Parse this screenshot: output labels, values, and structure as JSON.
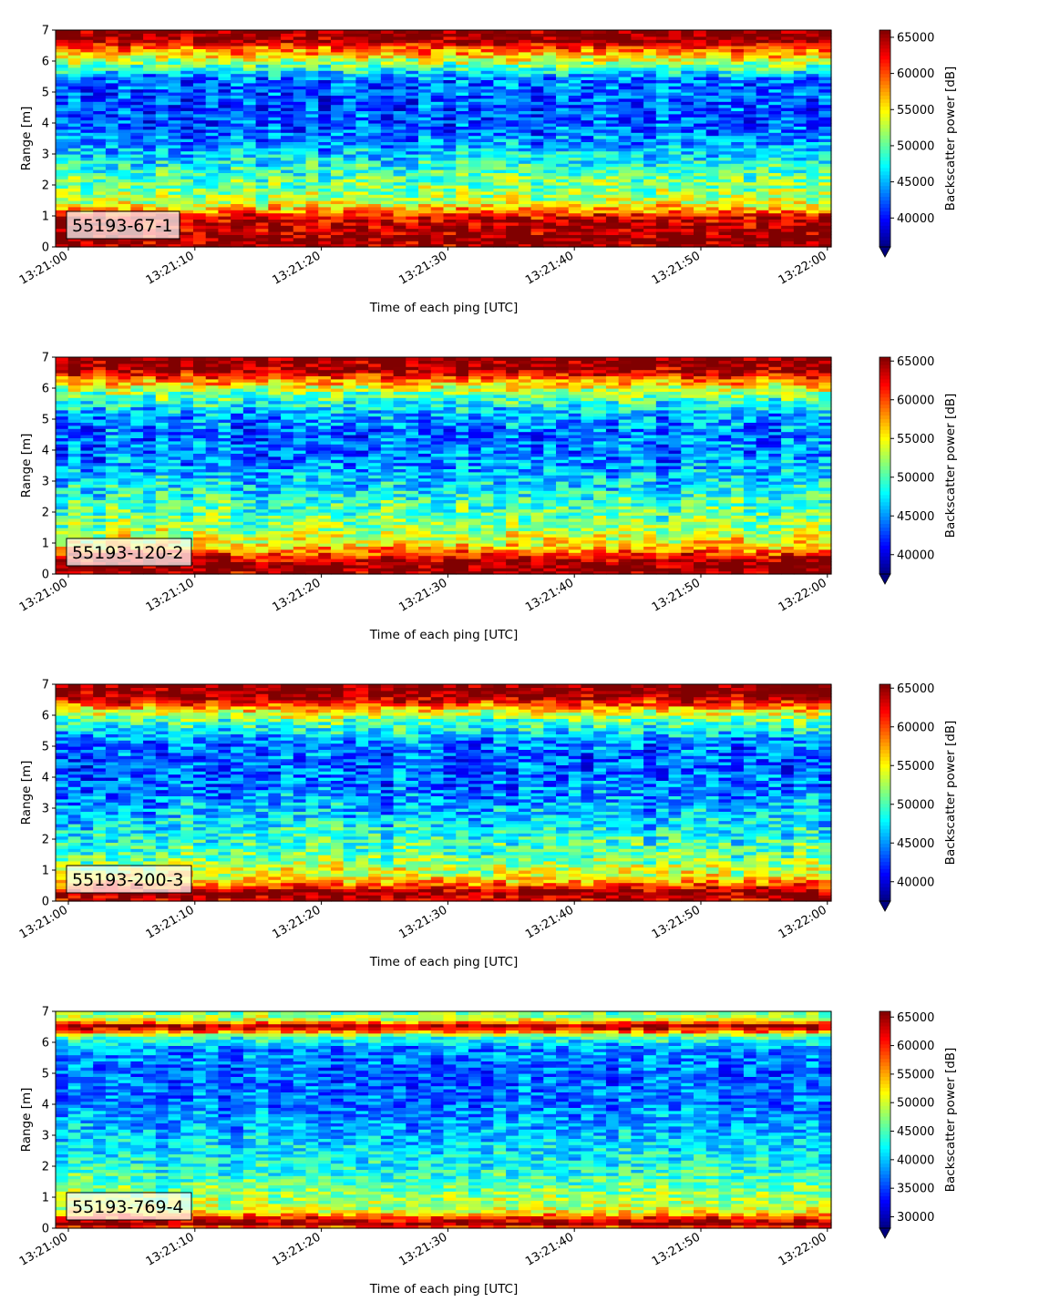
{
  "chart_data": [
    {
      "type": "heatmap",
      "label": "55193-67-1",
      "xlabel": "Time of each ping [UTC]",
      "ylabel": "Range [m]",
      "x_ticks": [
        "13:21:00",
        "13:21:10",
        "13:21:20",
        "13:21:30",
        "13:21:40",
        "13:21:50",
        "13:22:00"
      ],
      "y_ticks": [
        "0",
        "1",
        "2",
        "3",
        "4",
        "5",
        "6",
        "7"
      ],
      "ylim": [
        0,
        7
      ],
      "colorbar": {
        "label": "Backscatter power [dB]",
        "min": 36000,
        "max": 66000,
        "ticks": [
          "40000",
          "45000",
          "50000",
          "55000",
          "60000",
          "65000"
        ],
        "tick_values": [
          40000,
          45000,
          50000,
          55000,
          60000,
          65000
        ],
        "extend": "min"
      },
      "profile": [
        [
          0.0,
          64000
        ],
        [
          0.2,
          66000
        ],
        [
          1.0,
          63000
        ],
        [
          1.2,
          57000
        ],
        [
          1.6,
          52000
        ],
        [
          2.2,
          50000
        ],
        [
          2.8,
          47000
        ],
        [
          3.4,
          44000
        ],
        [
          4.0,
          42000
        ],
        [
          4.8,
          42000
        ],
        [
          5.4,
          43000
        ],
        [
          5.8,
          49000
        ],
        [
          6.2,
          56000
        ],
        [
          6.5,
          61000
        ],
        [
          6.7,
          66000
        ],
        [
          7.0,
          66000
        ]
      ],
      "noise": 5000
    },
    {
      "type": "heatmap",
      "label": "55193-120-2",
      "xlabel": "Time of each ping [UTC]",
      "ylabel": "Range [m]",
      "x_ticks": [
        "13:21:00",
        "13:21:10",
        "13:21:20",
        "13:21:30",
        "13:21:40",
        "13:21:50",
        "13:22:00"
      ],
      "y_ticks": [
        "0",
        "1",
        "2",
        "3",
        "4",
        "5",
        "6",
        "7"
      ],
      "ylim": [
        0,
        7
      ],
      "colorbar": {
        "label": "Backscatter power [dB]",
        "min": 37500,
        "max": 65500,
        "ticks": [
          "40000",
          "45000",
          "50000",
          "55000",
          "60000",
          "65000"
        ],
        "tick_values": [
          40000,
          45000,
          50000,
          55000,
          60000,
          65000
        ],
        "extend": "min"
      },
      "profile": [
        [
          0.0,
          64000
        ],
        [
          0.3,
          66000
        ],
        [
          0.6,
          62000
        ],
        [
          0.9,
          56000
        ],
        [
          1.5,
          52000
        ],
        [
          2.2,
          50000
        ],
        [
          3.0,
          47000
        ],
        [
          3.8,
          44500
        ],
        [
          4.6,
          44000
        ],
        [
          5.2,
          46000
        ],
        [
          5.8,
          51000
        ],
        [
          6.2,
          57000
        ],
        [
          6.5,
          63000
        ],
        [
          6.7,
          65500
        ],
        [
          7.0,
          65500
        ]
      ],
      "noise": 4800
    },
    {
      "type": "heatmap",
      "label": "55193-200-3",
      "xlabel": "Time of each ping [UTC]",
      "ylabel": "Range [m]",
      "x_ticks": [
        "13:21:00",
        "13:21:10",
        "13:21:20",
        "13:21:30",
        "13:21:40",
        "13:21:50",
        "13:22:00"
      ],
      "y_ticks": [
        "0",
        "1",
        "2",
        "3",
        "4",
        "5",
        "6",
        "7"
      ],
      "ylim": [
        0,
        7
      ],
      "colorbar": {
        "label": "Backscatter power [dB]",
        "min": 37500,
        "max": 65500,
        "ticks": [
          "40000",
          "45000",
          "50000",
          "55000",
          "60000",
          "65000"
        ],
        "tick_values": [
          40000,
          45000,
          50000,
          55000,
          60000,
          65000
        ],
        "extend": "min"
      },
      "profile": [
        [
          0.0,
          63000
        ],
        [
          0.3,
          65500
        ],
        [
          0.5,
          60000
        ],
        [
          0.8,
          55000
        ],
        [
          1.4,
          51000
        ],
        [
          2.2,
          48500
        ],
        [
          3.0,
          46000
        ],
        [
          3.8,
          44000
        ],
        [
          4.6,
          43500
        ],
        [
          5.2,
          45000
        ],
        [
          5.8,
          50000
        ],
        [
          6.2,
          56000
        ],
        [
          6.5,
          63000
        ],
        [
          6.7,
          65500
        ],
        [
          7.0,
          65500
        ]
      ],
      "noise": 4800
    },
    {
      "type": "heatmap",
      "label": "55193-769-4",
      "xlabel": "Time of each ping [UTC]",
      "ylabel": "Range [m]",
      "x_ticks": [
        "13:21:00",
        "13:21:10",
        "13:21:20",
        "13:21:30",
        "13:21:40",
        "13:21:50",
        "13:22:00"
      ],
      "y_ticks": [
        "0",
        "1",
        "2",
        "3",
        "4",
        "5",
        "6",
        "7"
      ],
      "ylim": [
        0,
        7
      ],
      "colorbar": {
        "label": "Backscatter power [dB]",
        "min": 28000,
        "max": 66000,
        "ticks": [
          "30000",
          "35000",
          "40000",
          "45000",
          "50000",
          "55000",
          "60000",
          "65000"
        ],
        "tick_values": [
          30000,
          35000,
          40000,
          45000,
          50000,
          55000,
          60000,
          65000
        ],
        "extend": "min"
      },
      "profile": [
        [
          0.0,
          56000
        ],
        [
          0.15,
          66000
        ],
        [
          0.35,
          60000
        ],
        [
          0.6,
          50000
        ],
        [
          1.2,
          47000
        ],
        [
          2.0,
          43000
        ],
        [
          3.0,
          40000
        ],
        [
          4.0,
          37500
        ],
        [
          5.0,
          36500
        ],
        [
          5.8,
          38000
        ],
        [
          6.2,
          45000
        ],
        [
          6.4,
          60000
        ],
        [
          6.55,
          64000
        ],
        [
          6.75,
          50000
        ],
        [
          7.0,
          46000
        ]
      ],
      "noise": 5500
    }
  ]
}
